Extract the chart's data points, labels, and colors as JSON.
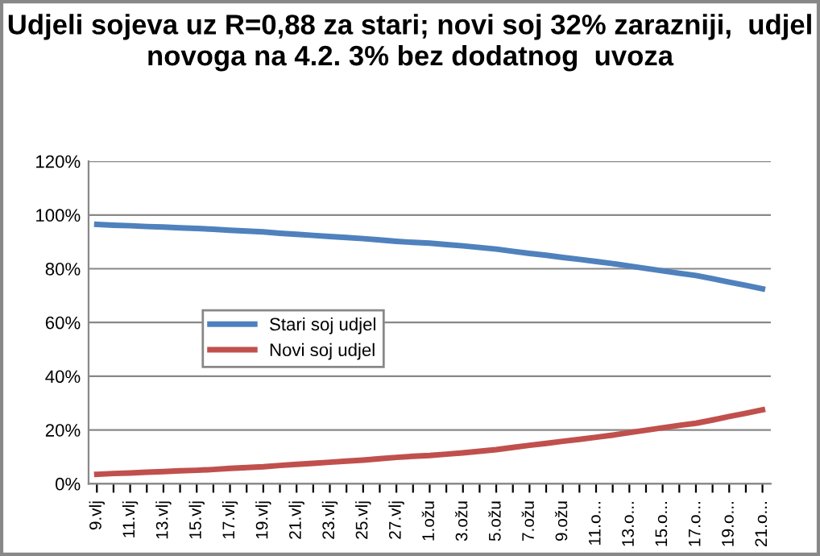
{
  "chart_data": {
    "type": "line",
    "title": "Udjeli sojeva uz R=0,88 za stari; novi soj 32% zarazniji,  udjel novoga na 4.2. 3% bez dodatnog  uvoza",
    "categories": [
      "9.vlj",
      null,
      "11.vlj",
      null,
      "13.vlj",
      null,
      "15.vlj",
      null,
      "17.vlj",
      null,
      "19.vlj",
      null,
      "21.vlj",
      null,
      "23.vlj",
      null,
      "25.vlj",
      null,
      "27.vlj",
      null,
      "1.ožu",
      null,
      "3.ožu",
      null,
      "5.ožu",
      null,
      "7.ožu",
      null,
      "9.ožu",
      null,
      "11.o...",
      null,
      "13.o...",
      null,
      "15.o...",
      null,
      "17.o...",
      null,
      "19.o...",
      null,
      "21.o..."
    ],
    "series": [
      {
        "name": "Stari soj udjel",
        "color": "#4f81bd",
        "values": [
          96.5,
          96.2,
          96,
          95.7,
          95.5,
          95.2,
          95,
          94.7,
          94.3,
          94,
          93.7,
          93.2,
          92.8,
          92.4,
          92,
          91.6,
          91.2,
          90.7,
          90.2,
          89.8,
          89.5,
          89,
          88.5,
          87.9,
          87.3,
          86.5,
          85.7,
          85,
          84.2,
          83.5,
          82.7,
          81.9,
          81,
          80.1,
          79.2,
          78.3,
          77.5,
          76.3,
          75,
          73.8,
          72.5
        ]
      },
      {
        "name": "Novi soj udjel",
        "color": "#c0504d",
        "values": [
          3.5,
          3.8,
          4,
          4.3,
          4.5,
          4.8,
          5,
          5.3,
          5.7,
          6,
          6.3,
          6.8,
          7.2,
          7.6,
          8,
          8.4,
          8.8,
          9.3,
          9.8,
          10.2,
          10.5,
          11,
          11.5,
          12.1,
          12.7,
          13.5,
          14.3,
          15,
          15.8,
          16.5,
          17.3,
          18.1,
          19,
          19.9,
          20.8,
          21.7,
          22.5,
          23.7,
          25,
          26.2,
          27.5
        ]
      }
    ],
    "ylim": [
      0,
      120
    ],
    "yticks": [
      {
        "value": 0,
        "label": "0%"
      },
      {
        "value": 20,
        "label": "20%"
      },
      {
        "value": 40,
        "label": "40%"
      },
      {
        "value": 60,
        "label": "60%"
      },
      {
        "value": 80,
        "label": "80%"
      },
      {
        "value": 100,
        "label": "100%"
      },
      {
        "value": 120,
        "label": "120%"
      }
    ],
    "grid": "y",
    "legend": "center",
    "marker": "none",
    "line_style": "solid"
  }
}
